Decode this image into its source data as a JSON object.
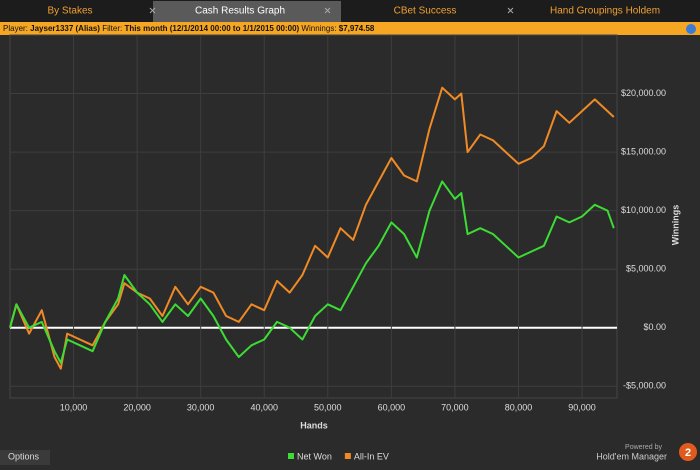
{
  "tabs": [
    "By Stakes",
    "Cash Results Graph",
    "CBet Success",
    "Hand Groupings Holdem"
  ],
  "filter_bar": {
    "player_label": "Player:",
    "player": "Jayser1337 (Alias)",
    "filter_label": "Filter:",
    "filter": "This month (12/1/2014 00:00 to 1/1/2015 00:00)",
    "winnings_label": "Winnings:",
    "winnings": "$7,974.58"
  },
  "footer": {
    "options": "Options",
    "powered_by": "Powered by",
    "brand": "Hold'em Manager",
    "brand_number": "2"
  },
  "chart_data": {
    "type": "line",
    "x_label": "Hands",
    "y_label": "Winnings",
    "x": [
      0,
      1000,
      3000,
      5000,
      7000,
      8000,
      9000,
      11000,
      13000,
      15000,
      17000,
      18000,
      20000,
      22000,
      24000,
      26000,
      28000,
      30000,
      32000,
      34000,
      36000,
      38000,
      40000,
      42000,
      44000,
      46000,
      48000,
      50000,
      52000,
      54000,
      56000,
      58000,
      60000,
      62000,
      64000,
      66000,
      68000,
      70000,
      71000,
      72000,
      74000,
      76000,
      78000,
      80000,
      82000,
      84000,
      86000,
      88000,
      90000,
      92000,
      94000,
      95000
    ],
    "series": [
      {
        "name": "Net Won",
        "color": "#3ddc35",
        "values": [
          0,
          2000,
          0,
          500,
          -2000,
          -3000,
          -1000,
          -1500,
          -2000,
          500,
          2500,
          4500,
          3000,
          2000,
          500,
          2000,
          1000,
          2500,
          1000,
          -1000,
          -2500,
          -1500,
          -1000,
          500,
          0,
          -1000,
          1000,
          2000,
          1500,
          3500,
          5500,
          7000,
          9000,
          8000,
          6000,
          10000,
          12500,
          11000,
          11500,
          8000,
          8500,
          8000,
          7000,
          6000,
          6500,
          7000,
          9500,
          9000,
          9500,
          10500,
          10000,
          8500
        ]
      },
      {
        "name": "All-In EV",
        "color": "#f08a24",
        "values": [
          0,
          2000,
          -500,
          1500,
          -2500,
          -3500,
          -500,
          -1000,
          -1500,
          500,
          2000,
          3800,
          3000,
          2500,
          1000,
          3500,
          2000,
          3500,
          3000,
          1000,
          500,
          2000,
          1500,
          4000,
          3000,
          4500,
          7000,
          6000,
          8500,
          7500,
          10500,
          12500,
          14500,
          13000,
          12500,
          17000,
          20500,
          19500,
          20000,
          15000,
          16500,
          16000,
          15000,
          14000,
          14500,
          15500,
          18500,
          17500,
          18500,
          19500,
          18500,
          18000
        ]
      }
    ],
    "xlim": [
      0,
      95500
    ],
    "ylim": [
      -6000,
      25000
    ],
    "xticks": [
      {
        "value": 10000,
        "label": "10,000"
      },
      {
        "value": 20000,
        "label": "20,000"
      },
      {
        "value": 30000,
        "label": "30,000"
      },
      {
        "value": 40000,
        "label": "40,000"
      },
      {
        "value": 50000,
        "label": "50,000"
      },
      {
        "value": 60000,
        "label": "60,000"
      },
      {
        "value": 70000,
        "label": "70,000"
      },
      {
        "value": 80000,
        "label": "80,000"
      },
      {
        "value": 90000,
        "label": "90,000"
      }
    ],
    "yticks": [
      {
        "value": -5000,
        "label": "-$5,000.00"
      },
      {
        "value": 0,
        "label": "$0.00"
      },
      {
        "value": 5000,
        "label": "$5,000.00"
      },
      {
        "value": 10000,
        "label": "$10,000.00"
      },
      {
        "value": 15000,
        "label": "$15,000.00"
      },
      {
        "value": 20000,
        "label": "$20,000.00"
      }
    ],
    "grid": true,
    "zero_line": true,
    "legend": "bottom"
  }
}
